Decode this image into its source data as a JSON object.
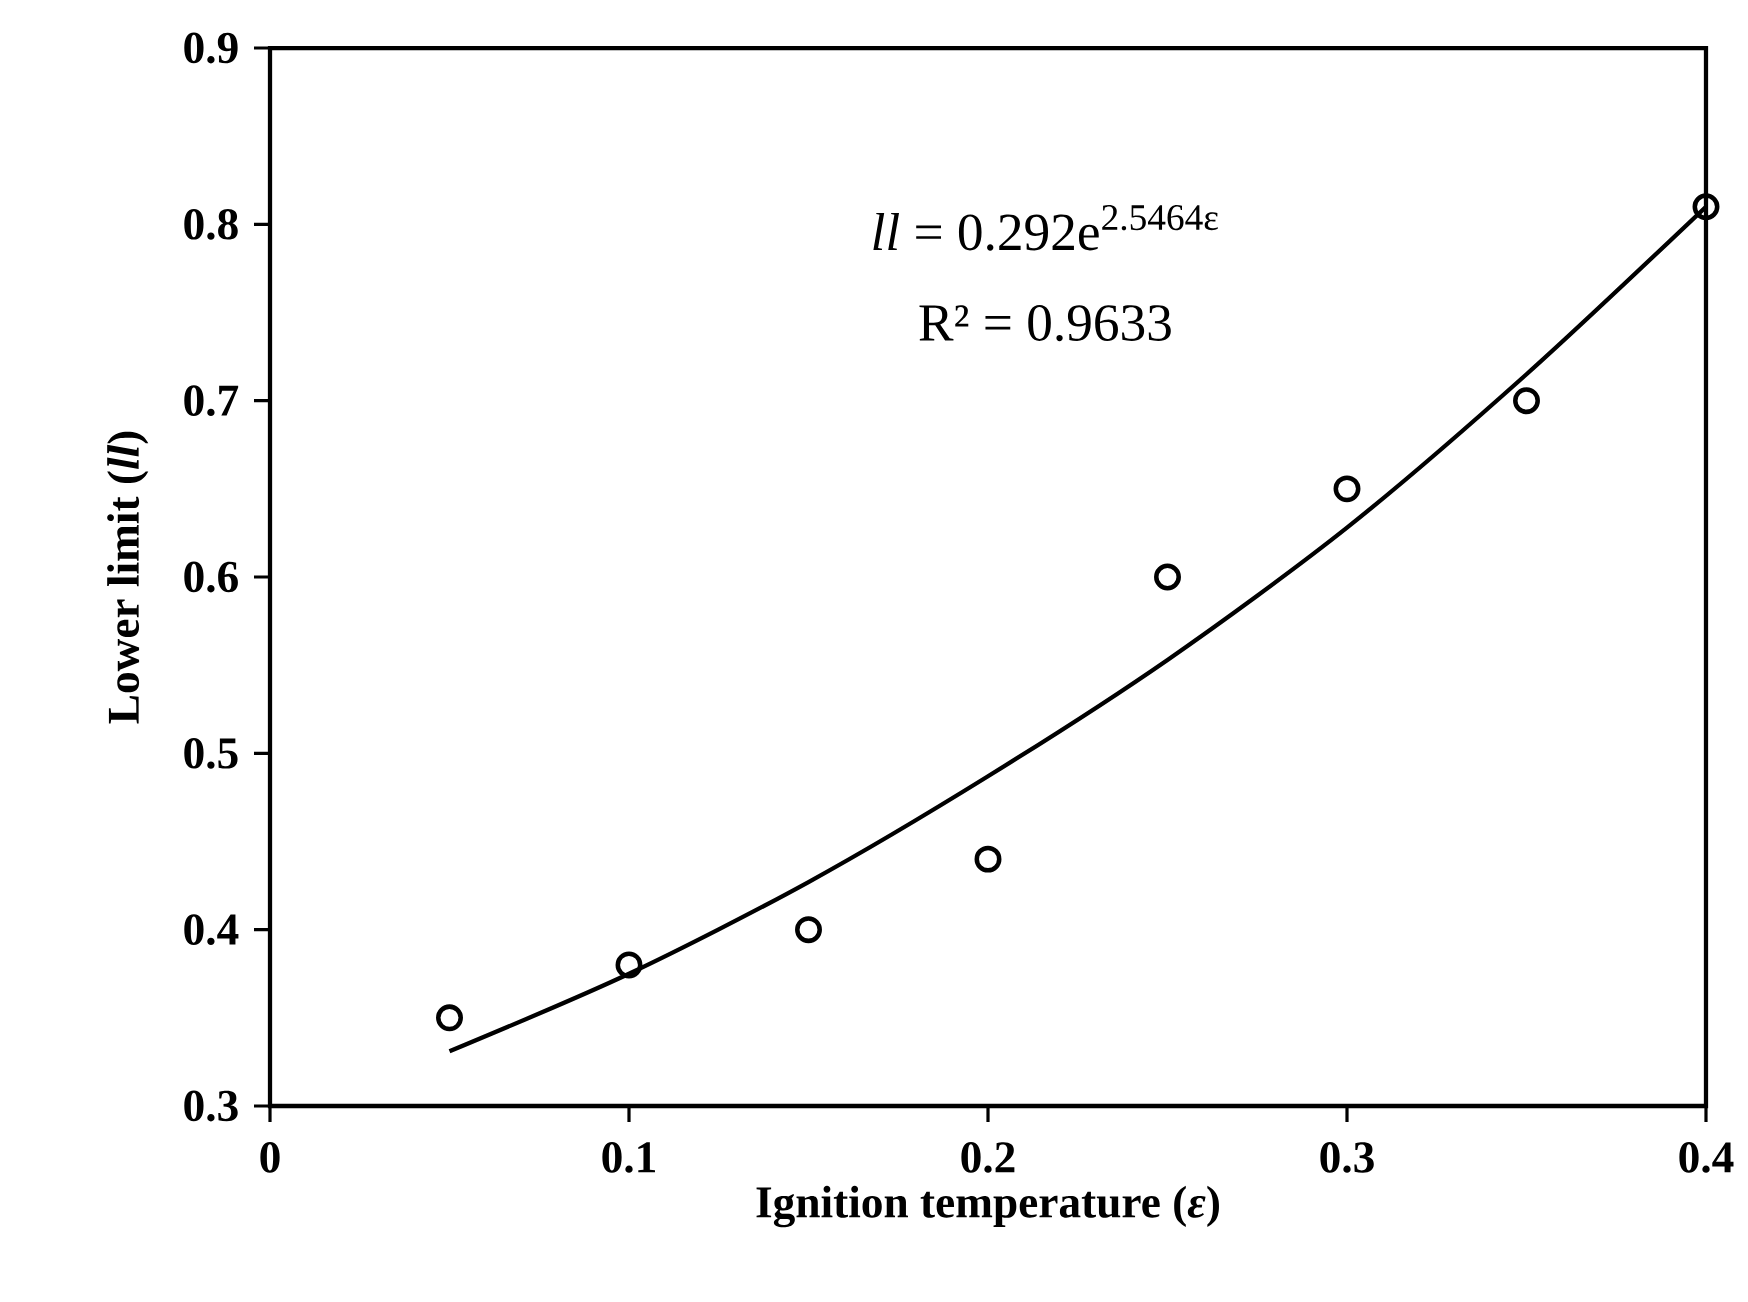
{
  "chart_data": {
    "type": "scatter",
    "xlabel": "Ignition temperature (*ε*)",
    "ylabel": "Lower limit (*ll*)",
    "annotations": [
      "*ll* = 0.292e$^{2.5464ε}$",
      "R² = 0.9633"
    ],
    "series": [
      {
        "color": "#000000",
        "marker": "circle",
        "x": [
          0.05,
          0.1,
          0.15,
          0.2,
          0.25,
          0.3,
          0.35,
          0.4
        ],
        "values": [
          0.35,
          0.38,
          0.4,
          0.44,
          0.6,
          0.65,
          0.7,
          0.81
        ]
      },
      {
        "type": "line",
        "color": "#000000",
        "line_style": "solid",
        "marker": "none",
        "x": [
          0.05,
          0.1,
          0.15,
          0.2,
          0.25,
          0.3,
          0.35,
          0.4
        ],
        "values": [
          0.331,
          0.375,
          0.427,
          0.487,
          0.553,
          0.628,
          0.715,
          0.81
        ]
      }
    ],
    "xlim": [
      0,
      0.4
    ],
    "ylim": [
      0.3,
      0.9
    ],
    "xticks": [
      0,
      0.1,
      0.2,
      0.3,
      0.4
    ],
    "yticks": [
      0.3,
      0.4,
      0.5,
      0.6,
      0.7,
      0.8,
      0.9
    ],
    "grid": false
  }
}
